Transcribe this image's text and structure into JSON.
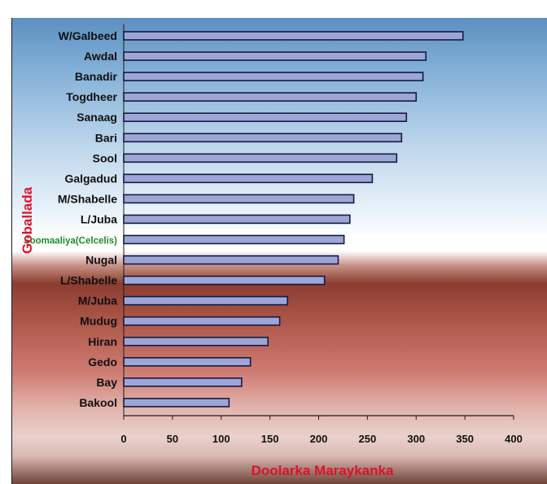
{
  "title_partial": "",
  "chart_data": {
    "type": "bar",
    "orientation": "horizontal",
    "categories": [
      "W/Galbeed",
      "Awdal",
      "Banadir",
      "Togdheer",
      "Sanaag",
      "Bari",
      "Sool",
      "Galgadud",
      "M/Shabelle",
      "L/Juba",
      "Soomaaliya(Celcelis)",
      "Nugal",
      "L/Shabelle",
      "M/Juba",
      "Mudug",
      "Hiran",
      "Gedo",
      "Bay",
      "Bakool"
    ],
    "values": [
      348,
      310,
      307,
      300,
      290,
      285,
      280,
      255,
      236,
      232,
      226,
      220,
      206,
      168,
      160,
      148,
      130,
      121,
      108
    ],
    "highlight_category": "Soomaaliya(Celcelis)",
    "xlabel": "Doolarka Maraykanka",
    "ylabel": "Goballada",
    "xlim": [
      0,
      400
    ],
    "xticks": [
      0,
      50,
      100,
      150,
      200,
      250,
      300,
      350,
      400
    ],
    "grid": false,
    "legend": "none",
    "colors": {
      "bar_fill": "#9da6d6",
      "bar_stroke": "#141a40",
      "label": "#101010",
      "highlight_label": "#1e8c2a",
      "axis_title": "#e0112b",
      "axis": "#1a1a1a"
    }
  }
}
